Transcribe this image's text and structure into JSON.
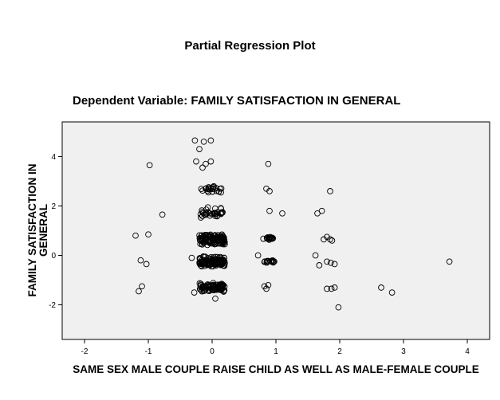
{
  "chart_data": {
    "type": "scatter",
    "title": "Partial Regression Plot",
    "subtitle": "Dependent Variable: FAMILY SATISFACTION IN GENERAL",
    "xlabel": "SAME SEX MALE COUPLE RAISE CHILD AS WELL AS MALE-FEMALE COUPLE",
    "ylabel": "FAMILY SATISFACTION IN GENERAL",
    "xlim": [
      -2.35,
      4.35
    ],
    "ylim": [
      -3.4,
      5.4
    ],
    "x_ticks": [
      -2,
      -1,
      0,
      1,
      2,
      3,
      4
    ],
    "y_ticks": [
      -2,
      0,
      2,
      4
    ],
    "grid": false,
    "legend": "none",
    "colors": {
      "plot_background": "#f0f0f0",
      "marker": "#000000"
    },
    "marker": "open-circle",
    "outliers": [
      [
        -0.27,
        4.65
      ],
      [
        -0.13,
        4.6
      ],
      [
        -0.02,
        4.65
      ],
      [
        -0.2,
        4.3
      ],
      [
        -0.25,
        3.8
      ],
      [
        -0.02,
        3.8
      ],
      [
        0.88,
        3.7
      ],
      [
        -0.98,
        3.65
      ],
      [
        -0.15,
        3.55
      ],
      [
        -0.1,
        3.7
      ],
      [
        0.85,
        2.7
      ],
      [
        0.9,
        2.6
      ],
      [
        1.85,
        2.6
      ],
      [
        -0.78,
        1.65
      ],
      [
        0.9,
        1.8
      ],
      [
        1.1,
        1.7
      ],
      [
        1.65,
        1.7
      ],
      [
        1.72,
        1.8
      ],
      [
        -1.2,
        0.8
      ],
      [
        -1.0,
        0.85
      ],
      [
        1.75,
        0.65
      ],
      [
        1.8,
        0.75
      ],
      [
        1.85,
        0.65
      ],
      [
        1.88,
        0.6
      ],
      [
        -1.12,
        -0.2
      ],
      [
        -1.03,
        -0.35
      ],
      [
        0.72,
        0.0
      ],
      [
        1.62,
        0.0
      ],
      [
        1.68,
        -0.4
      ],
      [
        1.8,
        -0.25
      ],
      [
        1.86,
        -0.3
      ],
      [
        1.92,
        -0.35
      ],
      [
        3.72,
        -0.25
      ],
      [
        -0.32,
        -0.1
      ],
      [
        -1.1,
        -1.25
      ],
      [
        -1.15,
        -1.45
      ],
      [
        0.82,
        -1.25
      ],
      [
        0.85,
        -1.35
      ],
      [
        0.88,
        -1.2
      ],
      [
        1.8,
        -1.35
      ],
      [
        1.87,
        -1.35
      ],
      [
        1.92,
        -1.3
      ],
      [
        2.65,
        -1.3
      ],
      [
        2.82,
        -1.5
      ],
      [
        1.98,
        -2.1
      ],
      [
        0.05,
        -1.75
      ],
      [
        -0.28,
        -1.5
      ],
      [
        0.15,
        -1.15
      ]
    ],
    "clusters": [
      {
        "x_center": 0.0,
        "x_spread": 0.17,
        "y_center": 2.65,
        "y_spread": 0.18,
        "count": 24
      },
      {
        "x_center": 0.0,
        "x_spread": 0.18,
        "y_center": 1.7,
        "y_spread": 0.25,
        "count": 34
      },
      {
        "x_center": 0.0,
        "x_spread": 0.2,
        "y_center": 0.65,
        "y_spread": 0.23,
        "count": 130
      },
      {
        "x_center": 0.0,
        "x_spread": 0.2,
        "y_center": -0.25,
        "y_spread": 0.22,
        "count": 130
      },
      {
        "x_center": 0.0,
        "x_spread": 0.2,
        "y_center": -1.3,
        "y_spread": 0.2,
        "count": 85
      },
      {
        "x_center": 0.88,
        "x_spread": 0.08,
        "y_center": 0.7,
        "y_spread": 0.08,
        "count": 16
      },
      {
        "x_center": 0.9,
        "x_spread": 0.08,
        "y_center": -0.25,
        "y_spread": 0.08,
        "count": 16
      }
    ]
  }
}
